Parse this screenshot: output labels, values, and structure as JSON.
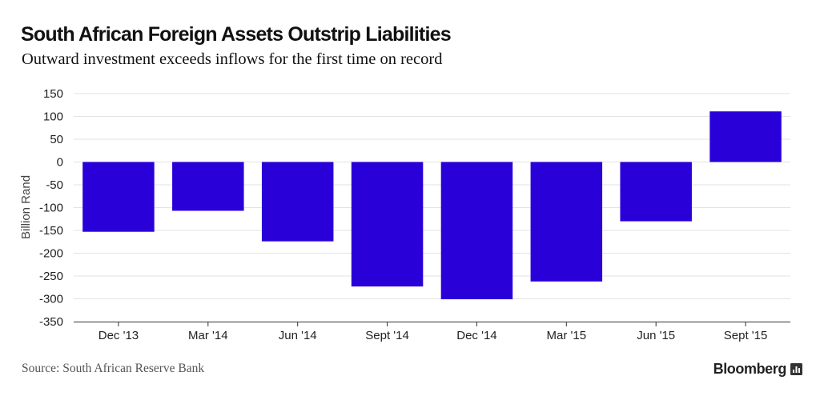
{
  "title": "South African Foreign Assets Outstrip Liabilities",
  "subtitle": "Outward investment exceeds inflows for the first time on record",
  "source": "Source: South African Reserve Bank",
  "brand": "Bloomberg",
  "brand_icon": "bloomberg-terminal-icon",
  "colors": {
    "bar": "#2a00d9",
    "grid": "#e3e3e3",
    "axis": "#333333"
  },
  "chart_data": {
    "type": "bar",
    "title": "South African Foreign Assets Outstrip Liabilities",
    "subtitle": "Outward investment exceeds inflows for the first time on record",
    "ylabel": "Billion Rand",
    "xlabel": "",
    "categories": [
      "Dec '13",
      "Mar '14",
      "Jun '14",
      "Sept '14",
      "Dec '14",
      "Mar '15",
      "Jun '15",
      "Sept '15"
    ],
    "values": [
      -153,
      -107,
      -174,
      -273,
      -301,
      -262,
      -130,
      111
    ],
    "ylim": [
      -350,
      150
    ],
    "yticks": [
      150,
      100,
      50,
      0,
      -50,
      -100,
      -150,
      -200,
      -250,
      -300,
      -350
    ],
    "grid": true,
    "legend": "none"
  }
}
